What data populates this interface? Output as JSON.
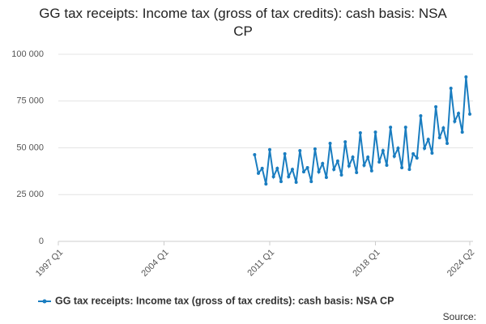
{
  "chart_data": {
    "type": "line",
    "title": "GG tax receipts: Income tax (gross of tax credits): cash basis: NSA CP",
    "source": "Source:",
    "categories": [
      "1997 Q1",
      null,
      null,
      null,
      null,
      null,
      null,
      null,
      null,
      null,
      null,
      null,
      null,
      null,
      null,
      null,
      null,
      null,
      null,
      null,
      null,
      null,
      null,
      null,
      null,
      null,
      null,
      null,
      "2004 Q1",
      null,
      null,
      null,
      null,
      null,
      null,
      null,
      null,
      null,
      null,
      null,
      null,
      null,
      null,
      null,
      null,
      null,
      null,
      null,
      null,
      null,
      null,
      null,
      null,
      null,
      null,
      null,
      "2011 Q1",
      null,
      null,
      null,
      null,
      null,
      null,
      null,
      null,
      null,
      null,
      null,
      null,
      null,
      null,
      null,
      null,
      null,
      null,
      null,
      null,
      null,
      null,
      null,
      null,
      null,
      null,
      null,
      "2018 Q1",
      null,
      null,
      null,
      null,
      null,
      null,
      null,
      null,
      null,
      null,
      null,
      null,
      null,
      null,
      null,
      null,
      null,
      null,
      null,
      null,
      null,
      null,
      null,
      null,
      "2024 Q2"
    ],
    "series": [
      {
        "name": "GG tax receipts: Income tax (gross of tax credits): cash basis: NSA CP",
        "color": "#1a7dc0",
        "values": [
          null,
          null,
          null,
          null,
          null,
          null,
          null,
          null,
          null,
          null,
          null,
          null,
          null,
          null,
          null,
          null,
          null,
          null,
          null,
          null,
          null,
          null,
          null,
          null,
          null,
          null,
          null,
          null,
          null,
          null,
          null,
          null,
          null,
          null,
          null,
          null,
          null,
          null,
          null,
          null,
          null,
          null,
          null,
          null,
          null,
          null,
          null,
          null,
          null,
          null,
          null,
          null,
          46300,
          36400,
          39000,
          30700,
          49000,
          34600,
          39000,
          32000,
          46800,
          34600,
          38500,
          31600,
          48500,
          37200,
          39400,
          32000,
          49400,
          37200,
          41600,
          34200,
          52400,
          38500,
          42900,
          35500,
          53200,
          40300,
          45000,
          36800,
          58000,
          40700,
          45000,
          37700,
          58400,
          42400,
          48500,
          40700,
          61000,
          45500,
          49800,
          39400,
          61000,
          38500,
          46800,
          44600,
          67100,
          49800,
          54500,
          47200,
          71900,
          55400,
          60600,
          52400,
          81800,
          64100,
          68400,
          58400,
          87900,
          68000
        ]
      }
    ],
    "ylim": [
      0,
      100000
    ],
    "yticks": [
      0,
      {
        "value": 25000,
        "label": "25 000"
      },
      {
        "value": 50000,
        "label": "50 000"
      },
      {
        "value": 75000,
        "label": "75 000"
      },
      {
        "value": 100000,
        "label": "100 000"
      }
    ],
    "grid": true
  }
}
